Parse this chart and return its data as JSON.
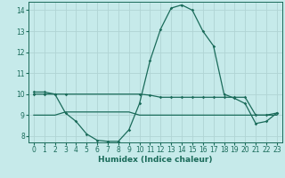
{
  "xlabel": "Humidex (Indice chaleur)",
  "xlim": [
    -0.5,
    23.5
  ],
  "ylim": [
    7.7,
    14.4
  ],
  "yticks": [
    8,
    9,
    10,
    11,
    12,
    13,
    14
  ],
  "xticks": [
    0,
    1,
    2,
    3,
    4,
    5,
    6,
    7,
    8,
    9,
    10,
    11,
    12,
    13,
    14,
    15,
    16,
    17,
    18,
    19,
    20,
    21,
    22,
    23
  ],
  "bg_color": "#c6eaea",
  "grid_color": "#b0d4d4",
  "line_color": "#1a6b5a",
  "series1_x": [
    0,
    1,
    2,
    3,
    4,
    5,
    6,
    7,
    8,
    9,
    10,
    11,
    12,
    13,
    14,
    15,
    16,
    17,
    18,
    19,
    20,
    21,
    22,
    23
  ],
  "series1_y": [
    10.1,
    10.1,
    10.0,
    9.1,
    8.7,
    8.1,
    7.8,
    7.75,
    7.75,
    8.3,
    9.55,
    11.6,
    13.1,
    14.1,
    14.25,
    14.0,
    13.0,
    12.3,
    10.0,
    9.8,
    9.55,
    8.6,
    8.7,
    9.1
  ],
  "series2_x": [
    0,
    1,
    2,
    3,
    10,
    11,
    12,
    13,
    14,
    15,
    16,
    17,
    18,
    19,
    20,
    21,
    22,
    23
  ],
  "series2_y": [
    10.0,
    10.0,
    10.0,
    10.0,
    10.0,
    9.95,
    9.85,
    9.85,
    9.85,
    9.85,
    9.85,
    9.85,
    9.85,
    9.85,
    9.85,
    9.0,
    9.0,
    9.1
  ],
  "series3_x": [
    0,
    1,
    2,
    3,
    4,
    5,
    6,
    7,
    8,
    9,
    10,
    11,
    12,
    13,
    14,
    15,
    16,
    17,
    18,
    19,
    20,
    21,
    22,
    23
  ],
  "series3_y": [
    9.0,
    9.0,
    9.0,
    9.15,
    9.15,
    9.15,
    9.15,
    9.15,
    9.15,
    9.15,
    9.0,
    9.0,
    9.0,
    9.0,
    9.0,
    9.0,
    9.0,
    9.0,
    9.0,
    9.0,
    9.0,
    9.0,
    9.0,
    9.0
  ]
}
